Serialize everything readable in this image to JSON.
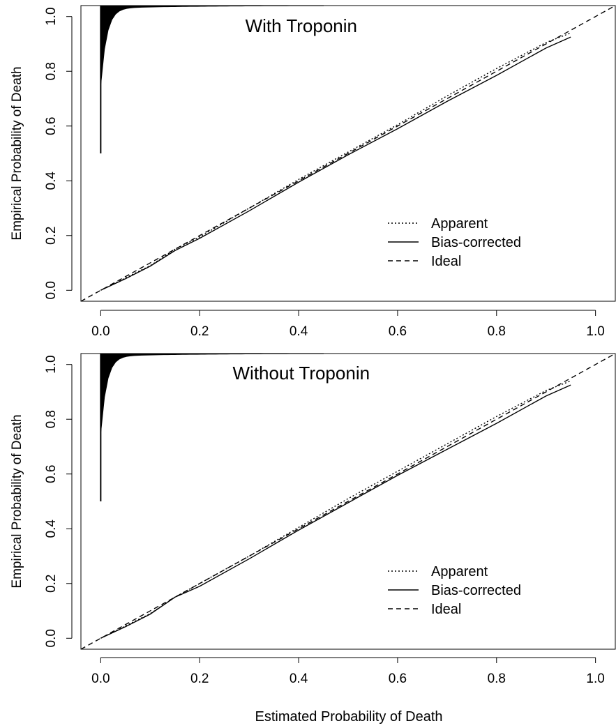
{
  "figure": {
    "xlabel": "Estimated Probability of Death"
  },
  "chart_data": [
    {
      "type": "line",
      "title": "With Troponin",
      "xlabel": "Estimated Probability of Death",
      "ylabel": "Empirical Probability of Death",
      "xlim": [
        -0.04,
        1.04
      ],
      "ylim": [
        -0.04,
        1.04
      ],
      "xticks": [
        "0.0",
        "0.2",
        "0.4",
        "0.6",
        "0.8",
        "1.0"
      ],
      "yticks": [
        "0.0",
        "0.2",
        "0.4",
        "0.6",
        "0.8",
        "1.0"
      ],
      "grid": false,
      "legend_position": "bottom-right",
      "series": [
        {
          "name": "Apparent",
          "style": "dotted",
          "x": [
            0.0,
            0.05,
            0.1,
            0.15,
            0.2,
            0.3,
            0.4,
            0.5,
            0.6,
            0.7,
            0.8,
            0.9,
            0.95
          ],
          "y": [
            0.0,
            0.045,
            0.09,
            0.15,
            0.195,
            0.3,
            0.405,
            0.505,
            0.605,
            0.71,
            0.81,
            0.905,
            0.94
          ]
        },
        {
          "name": "Bias-corrected",
          "style": "solid",
          "x": [
            0.0,
            0.05,
            0.1,
            0.15,
            0.2,
            0.3,
            0.4,
            0.5,
            0.6,
            0.7,
            0.8,
            0.9,
            0.95
          ],
          "y": [
            0.0,
            0.042,
            0.088,
            0.145,
            0.19,
            0.29,
            0.395,
            0.495,
            0.59,
            0.69,
            0.785,
            0.885,
            0.925
          ]
        },
        {
          "name": "Ideal",
          "style": "dashed",
          "x": [
            -0.04,
            1.04
          ],
          "y": [
            -0.04,
            1.04
          ]
        }
      ],
      "rug": {
        "x": 0.0,
        "y_min": 0.5,
        "y_max": 1.04
      }
    },
    {
      "type": "line",
      "title": "Without Troponin",
      "xlabel": "Estimated Probability of Death",
      "ylabel": "Empirical Probability of Death",
      "xlim": [
        -0.04,
        1.04
      ],
      "ylim": [
        -0.04,
        1.04
      ],
      "xticks": [
        "0.0",
        "0.2",
        "0.4",
        "0.6",
        "0.8",
        "1.0"
      ],
      "yticks": [
        "0.0",
        "0.2",
        "0.4",
        "0.6",
        "0.8",
        "1.0"
      ],
      "grid": false,
      "legend_position": "bottom-right",
      "series": [
        {
          "name": "Apparent",
          "style": "dotted",
          "x": [
            0.0,
            0.05,
            0.1,
            0.15,
            0.2,
            0.3,
            0.4,
            0.5,
            0.6,
            0.7,
            0.8,
            0.9,
            0.95
          ],
          "y": [
            0.0,
            0.045,
            0.09,
            0.15,
            0.2,
            0.3,
            0.405,
            0.51,
            0.61,
            0.71,
            0.81,
            0.905,
            0.94
          ]
        },
        {
          "name": "Bias-corrected",
          "style": "solid",
          "x": [
            0.0,
            0.05,
            0.1,
            0.15,
            0.2,
            0.3,
            0.4,
            0.5,
            0.6,
            0.7,
            0.8,
            0.9,
            0.95
          ],
          "y": [
            0.0,
            0.042,
            0.088,
            0.15,
            0.19,
            0.29,
            0.395,
            0.495,
            0.595,
            0.69,
            0.785,
            0.885,
            0.925
          ]
        },
        {
          "name": "Ideal",
          "style": "dashed",
          "x": [
            -0.04,
            1.04
          ],
          "y": [
            -0.04,
            1.04
          ]
        }
      ],
      "rug": {
        "x": 0.0,
        "y_min": 0.5,
        "y_max": 1.04
      }
    }
  ]
}
